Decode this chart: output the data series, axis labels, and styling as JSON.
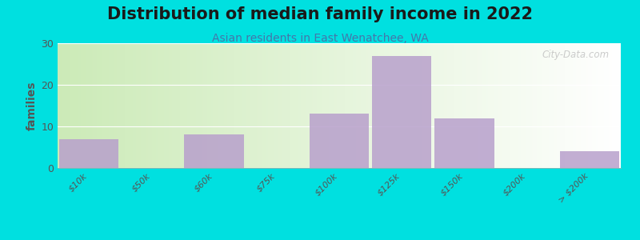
{
  "title": "Distribution of median family income in 2022",
  "subtitle": "Asian residents in East Wenatchee, WA",
  "ylabel": "families",
  "categories": [
    "$10k",
    "$50k",
    "$60k",
    "$75k",
    "$100k",
    "$125k",
    "$150k",
    "$200k",
    "> $200k"
  ],
  "values": [
    7,
    0,
    8,
    0,
    13,
    27,
    12,
    0,
    4
  ],
  "bar_color": "#b8a0cc",
  "ylim": [
    0,
    30
  ],
  "yticks": [
    0,
    10,
    20,
    30
  ],
  "background_outer": "#00e0e0",
  "bg_colors": [
    "#c5dea8",
    "#eef5e8",
    "#f5f8f0",
    "#ffffff"
  ],
  "title_fontsize": 15,
  "subtitle_fontsize": 10,
  "ylabel_fontsize": 10,
  "tick_fontsize": 8,
  "watermark_text": "City-Data.com"
}
